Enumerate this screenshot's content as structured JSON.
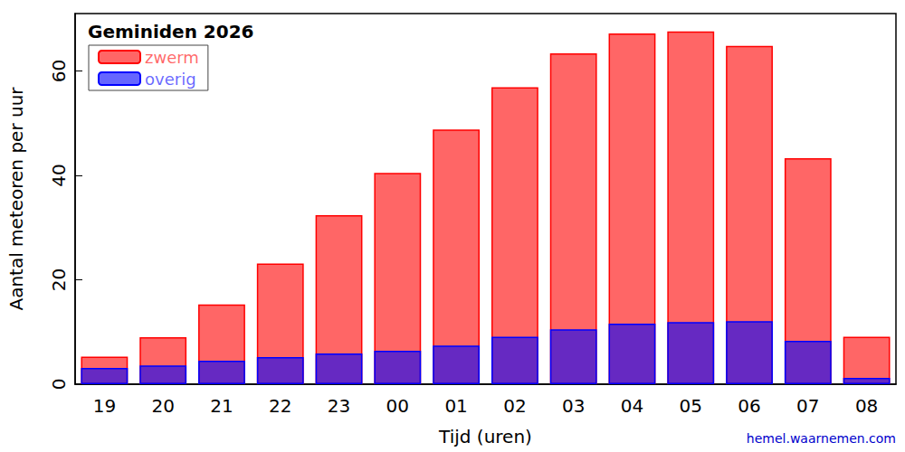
{
  "chart_data": {
    "type": "bar",
    "title": "Geminiden 2026",
    "x_label": "Tijd (uren)",
    "y_label": "Aantal meteoren per uur",
    "annotation": "hemel.waarnemen.com",
    "categories": [
      "19",
      "20",
      "21",
      "22",
      "23",
      "00",
      "01",
      "02",
      "03",
      "04",
      "05",
      "06",
      "07",
      "08"
    ],
    "series": [
      {
        "name": "zwerm",
        "color": "#ff0000",
        "values": [
          5.3,
          9.0,
          15.3,
          23.1,
          32.4,
          40.5,
          48.8,
          56.9,
          63.4,
          67.2,
          67.6,
          64.8,
          43.3,
          9.1
        ]
      },
      {
        "name": "overig",
        "color": "#0000ff",
        "values": [
          3.1,
          3.6,
          4.5,
          5.2,
          5.9,
          6.4,
          7.4,
          9.1,
          10.5,
          11.6,
          11.9,
          12.1,
          8.3,
          1.2
        ]
      }
    ],
    "ylim": [
      0,
      71
    ],
    "yticks": [
      0,
      20,
      40,
      60
    ],
    "grid": false,
    "legend": "upper left"
  }
}
